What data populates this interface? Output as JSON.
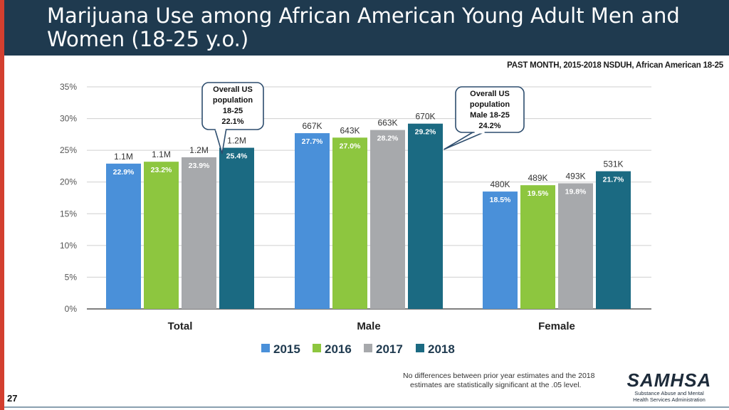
{
  "header": {
    "title": "Marijuana Use among African American Young Adult Men and Women (18-25 y.o.)",
    "source": "PAST MONTH, 2015-2018 NSDUH, African American 18-25"
  },
  "chart_data": {
    "type": "bar",
    "categories": [
      "Total",
      "Male",
      "Female"
    ],
    "series": [
      {
        "name": "2015",
        "color": "#4a90d9",
        "values": [
          22.9,
          27.7,
          18.5
        ],
        "counts": [
          "1.1M",
          "667K",
          "480K"
        ],
        "labels": [
          "22.9%",
          "27.7%",
          "18.5%"
        ]
      },
      {
        "name": "2016",
        "color": "#8dc63f",
        "values": [
          23.2,
          27.0,
          19.5
        ],
        "counts": [
          "1.1M",
          "643K",
          "489K"
        ],
        "labels": [
          "23.2%",
          "27.0%",
          "19.5%"
        ]
      },
      {
        "name": "2017",
        "color": "#a7a9ac",
        "values": [
          23.9,
          28.2,
          19.8
        ],
        "counts": [
          "1.2M",
          "663K",
          "493K"
        ],
        "labels": [
          "23.9%",
          "28.2%",
          "19.8%"
        ]
      },
      {
        "name": "2018",
        "color": "#1b6a82",
        "values": [
          25.4,
          29.2,
          21.7
        ],
        "counts": [
          "1.2M",
          "670K",
          "531K"
        ],
        "labels": [
          "25.4%",
          "29.2%",
          "21.7%"
        ]
      }
    ],
    "ylim": [
      0,
      35
    ],
    "yticks": [
      0,
      5,
      10,
      15,
      20,
      25,
      30,
      35
    ],
    "ytick_labels": [
      "0%",
      "5%",
      "10%",
      "15%",
      "20%",
      "25%",
      "30%",
      "35%"
    ],
    "grid": true,
    "legend": "bottom-center",
    "annotations": [
      {
        "text": [
          "Overall US",
          "population",
          "18-25",
          "22.1%"
        ],
        "target": "Total 2018"
      },
      {
        "text": [
          "Overall US",
          "population",
          "Male 18-25",
          "24.2%"
        ],
        "target": "Male 2018"
      }
    ]
  },
  "footnote": {
    "line1": "No differences between prior year estimates and the 2018",
    "line2": "estimates are statistically significant at the .05 level."
  },
  "logo": {
    "name": "SAMHSA",
    "tagline": "Substance Abuse and Mental Health Services Administration"
  },
  "page_number": "27",
  "colors": {
    "title_bg": "#1f3a4f",
    "accent": "#d33f2f"
  }
}
